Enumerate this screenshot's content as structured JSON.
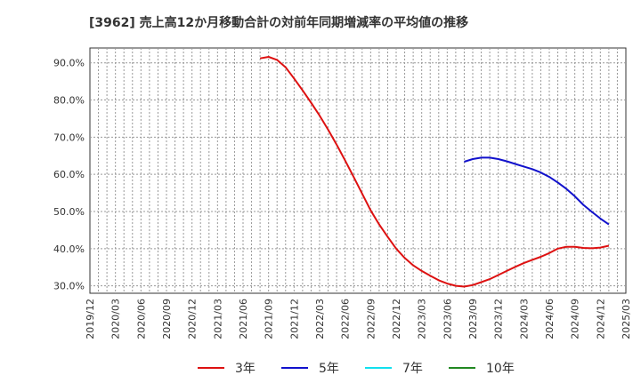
{
  "chart_data": {
    "type": "line",
    "title": "[3962]  売上高12か月移動合計の対前年同期増減率の平均値の推移",
    "xlabel": "",
    "ylabel": "",
    "x_range": [
      "2019/12",
      "2025/03"
    ],
    "ylim": [
      0.28,
      0.94
    ],
    "grid": true,
    "x_tick_labels": [
      "2019/12",
      "2020/03",
      "2020/06",
      "2020/09",
      "2020/12",
      "2021/03",
      "2021/06",
      "2021/09",
      "2021/12",
      "2022/03",
      "2022/06",
      "2022/09",
      "2022/12",
      "2023/03",
      "2023/06",
      "2023/09",
      "2023/12",
      "2024/03",
      "2024/06",
      "2024/09",
      "2024/12",
      "2025/03"
    ],
    "y_ticks": [
      {
        "value": 0.3,
        "label": "30.0%"
      },
      {
        "value": 0.4,
        "label": "40.0%"
      },
      {
        "value": 0.5,
        "label": "50.0%"
      },
      {
        "value": 0.6,
        "label": "60.0%"
      },
      {
        "value": 0.7,
        "label": "70.0%"
      },
      {
        "value": 0.8,
        "label": "80.0%"
      },
      {
        "value": 0.9,
        "label": "90.0%"
      }
    ],
    "legend_position": "bottom",
    "series": [
      {
        "name": "3年",
        "color": "#dd1111",
        "points": [
          [
            "2021/08",
            0.912
          ],
          [
            "2021/09",
            0.916
          ],
          [
            "2021/10",
            0.908
          ],
          [
            "2021/11",
            0.888
          ],
          [
            "2021/12",
            0.858
          ],
          [
            "2022/01",
            0.826
          ],
          [
            "2022/02",
            0.793
          ],
          [
            "2022/03",
            0.758
          ],
          [
            "2022/04",
            0.72
          ],
          [
            "2022/05",
            0.68
          ],
          [
            "2022/06",
            0.637
          ],
          [
            "2022/07",
            0.593
          ],
          [
            "2022/08",
            0.548
          ],
          [
            "2022/09",
            0.503
          ],
          [
            "2022/10",
            0.465
          ],
          [
            "2022/11",
            0.432
          ],
          [
            "2022/12",
            0.4
          ],
          [
            "2023/01",
            0.375
          ],
          [
            "2023/02",
            0.355
          ],
          [
            "2023/03",
            0.34
          ],
          [
            "2023/04",
            0.327
          ],
          [
            "2023/05",
            0.315
          ],
          [
            "2023/06",
            0.306
          ],
          [
            "2023/07",
            0.3
          ],
          [
            "2023/08",
            0.298
          ],
          [
            "2023/09",
            0.302
          ],
          [
            "2023/10",
            0.31
          ],
          [
            "2023/11",
            0.318
          ],
          [
            "2023/12",
            0.329
          ],
          [
            "2024/01",
            0.34
          ],
          [
            "2024/02",
            0.351
          ],
          [
            "2024/03",
            0.361
          ],
          [
            "2024/04",
            0.37
          ],
          [
            "2024/05",
            0.378
          ],
          [
            "2024/06",
            0.388
          ],
          [
            "2024/07",
            0.4
          ],
          [
            "2024/08",
            0.405
          ],
          [
            "2024/09",
            0.405
          ],
          [
            "2024/10",
            0.402
          ],
          [
            "2024/11",
            0.401
          ],
          [
            "2024/12",
            0.403
          ],
          [
            "2025/01",
            0.408
          ]
        ]
      },
      {
        "name": "5年",
        "color": "#1111cc",
        "points": [
          [
            "2023/08",
            0.634
          ],
          [
            "2023/09",
            0.641
          ],
          [
            "2023/10",
            0.645
          ],
          [
            "2023/11",
            0.645
          ],
          [
            "2023/12",
            0.641
          ],
          [
            "2024/01",
            0.635
          ],
          [
            "2024/02",
            0.628
          ],
          [
            "2024/03",
            0.621
          ],
          [
            "2024/04",
            0.614
          ],
          [
            "2024/05",
            0.605
          ],
          [
            "2024/06",
            0.593
          ],
          [
            "2024/07",
            0.578
          ],
          [
            "2024/08",
            0.561
          ],
          [
            "2024/09",
            0.541
          ],
          [
            "2024/10",
            0.518
          ],
          [
            "2024/11",
            0.499
          ],
          [
            "2024/12",
            0.481
          ],
          [
            "2025/01",
            0.465
          ]
        ]
      },
      {
        "name": "7年",
        "color": "#11e0ee",
        "points": []
      },
      {
        "name": "10年",
        "color": "#228822",
        "points": []
      }
    ]
  }
}
